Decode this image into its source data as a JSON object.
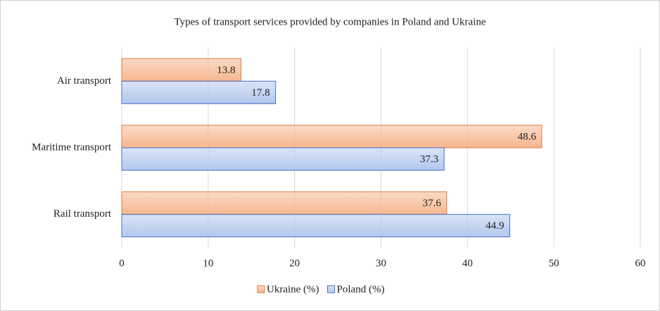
{
  "chart_data": {
    "type": "bar",
    "orientation": "horizontal",
    "title": "Types of transport services provided by companies in Poland and Ukraine",
    "categories": [
      "Air transport",
      "Maritime transport",
      "Rail transport"
    ],
    "series": [
      {
        "name": "Ukraine (%)",
        "color": "#f6b68f",
        "values": [
          13.8,
          48.6,
          37.6
        ]
      },
      {
        "name": "Poland (%)",
        "color": "#b3c8ee",
        "values": [
          17.8,
          37.3,
          44.9
        ]
      }
    ],
    "xlim": [
      0,
      60
    ],
    "xticks": [
      0,
      10,
      20,
      30,
      40,
      50,
      60
    ],
    "grid": true,
    "legend": "bottom"
  }
}
